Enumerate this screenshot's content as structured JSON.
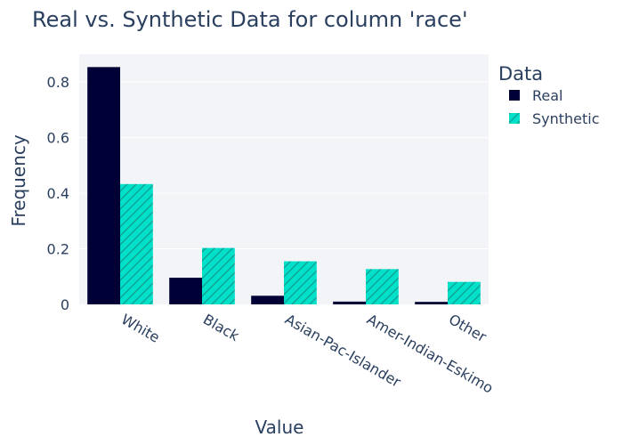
{
  "chart_data": {
    "type": "bar",
    "title": "Real vs. Synthetic Data for column 'race'",
    "xlabel": "Value",
    "ylabel": "Frequency",
    "categories": [
      "White",
      "Black",
      "Asian-Pac-Islander",
      "Amer-Indian-Eskimo",
      "Other"
    ],
    "series": [
      {
        "name": "Real",
        "values": [
          0.854,
          0.096,
          0.031,
          0.01,
          0.009
        ],
        "color": "#000036",
        "pattern": "solid"
      },
      {
        "name": "Synthetic",
        "values": [
          0.433,
          0.203,
          0.155,
          0.127,
          0.081
        ],
        "color": "#01e0c9",
        "pattern": "diagonal-hatch"
      }
    ],
    "ylim": [
      0,
      0.9
    ],
    "yticks": [
      0,
      0.2,
      0.4,
      0.6,
      0.8
    ],
    "ytick_labels": [
      "0",
      "0.2",
      "0.4",
      "0.6",
      "0.8"
    ],
    "grid": true,
    "legend": {
      "title": "Data",
      "placement": "right"
    },
    "colors": {
      "plot_background": "#f3f4f7",
      "grid": "#ffffff",
      "text": "#2a3f5f",
      "hatch": "#129c90"
    }
  }
}
